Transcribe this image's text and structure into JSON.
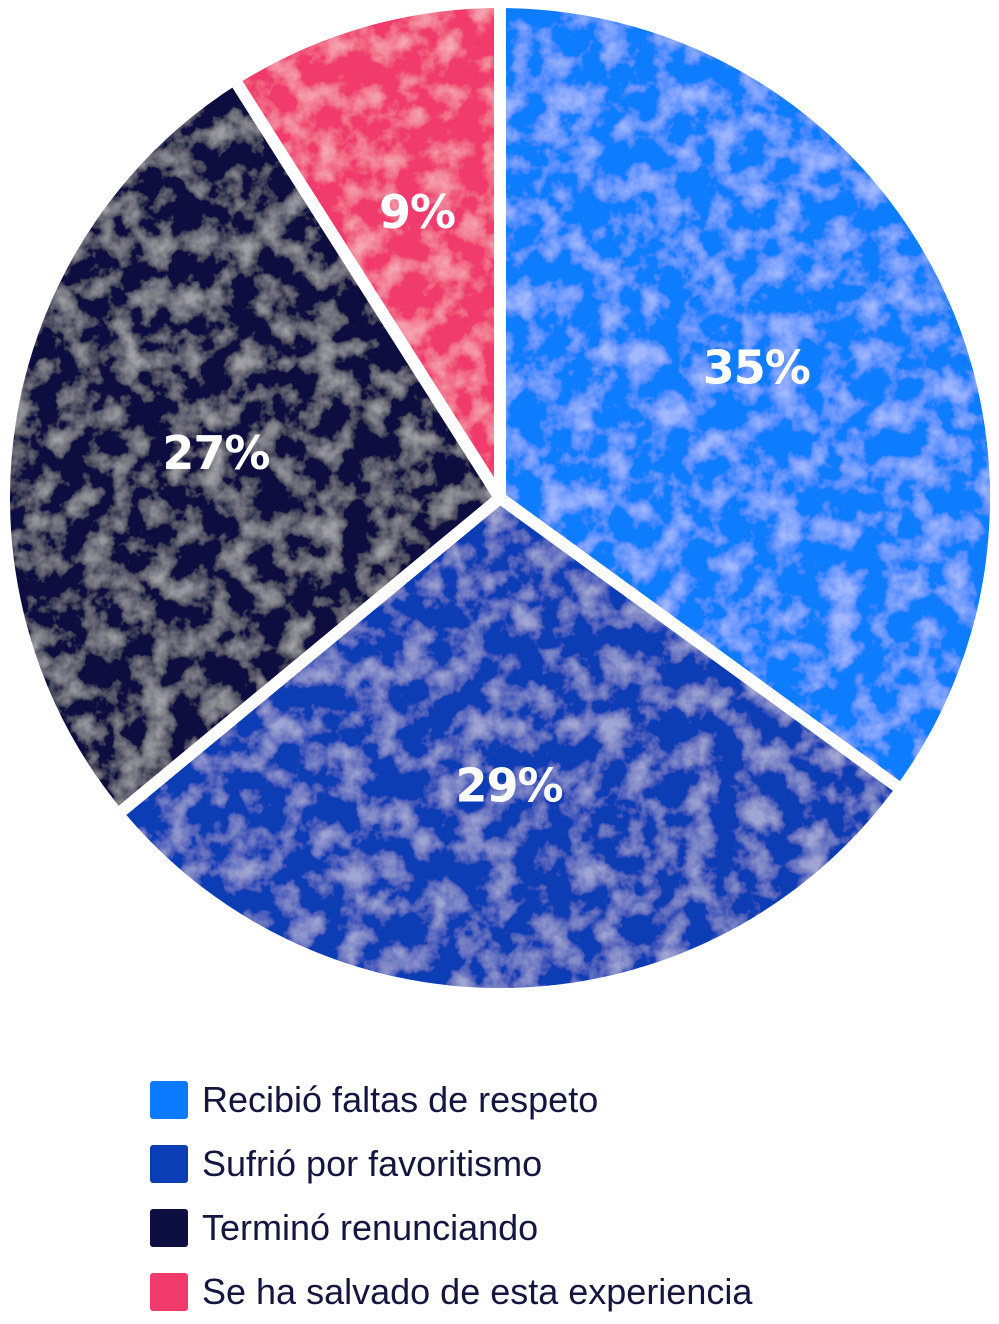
{
  "chart_data": {
    "type": "pie",
    "title": "",
    "slices": [
      {
        "label": "Recibió faltas de respeto",
        "value": 35,
        "display": "35%",
        "color": "#0a7bff"
      },
      {
        "label": "Sufrió por favoritismo",
        "value": 29,
        "display": "29%",
        "color": "#0b3eb5"
      },
      {
        "label": "Terminó renunciando",
        "value": 27,
        "display": "27%",
        "color": "#0c0f3f"
      },
      {
        "label": "Se ha salvado de esta experiencia",
        "value": 9,
        "display": "9%",
        "color": "#f03a6c"
      }
    ],
    "legend_position": "bottom"
  }
}
